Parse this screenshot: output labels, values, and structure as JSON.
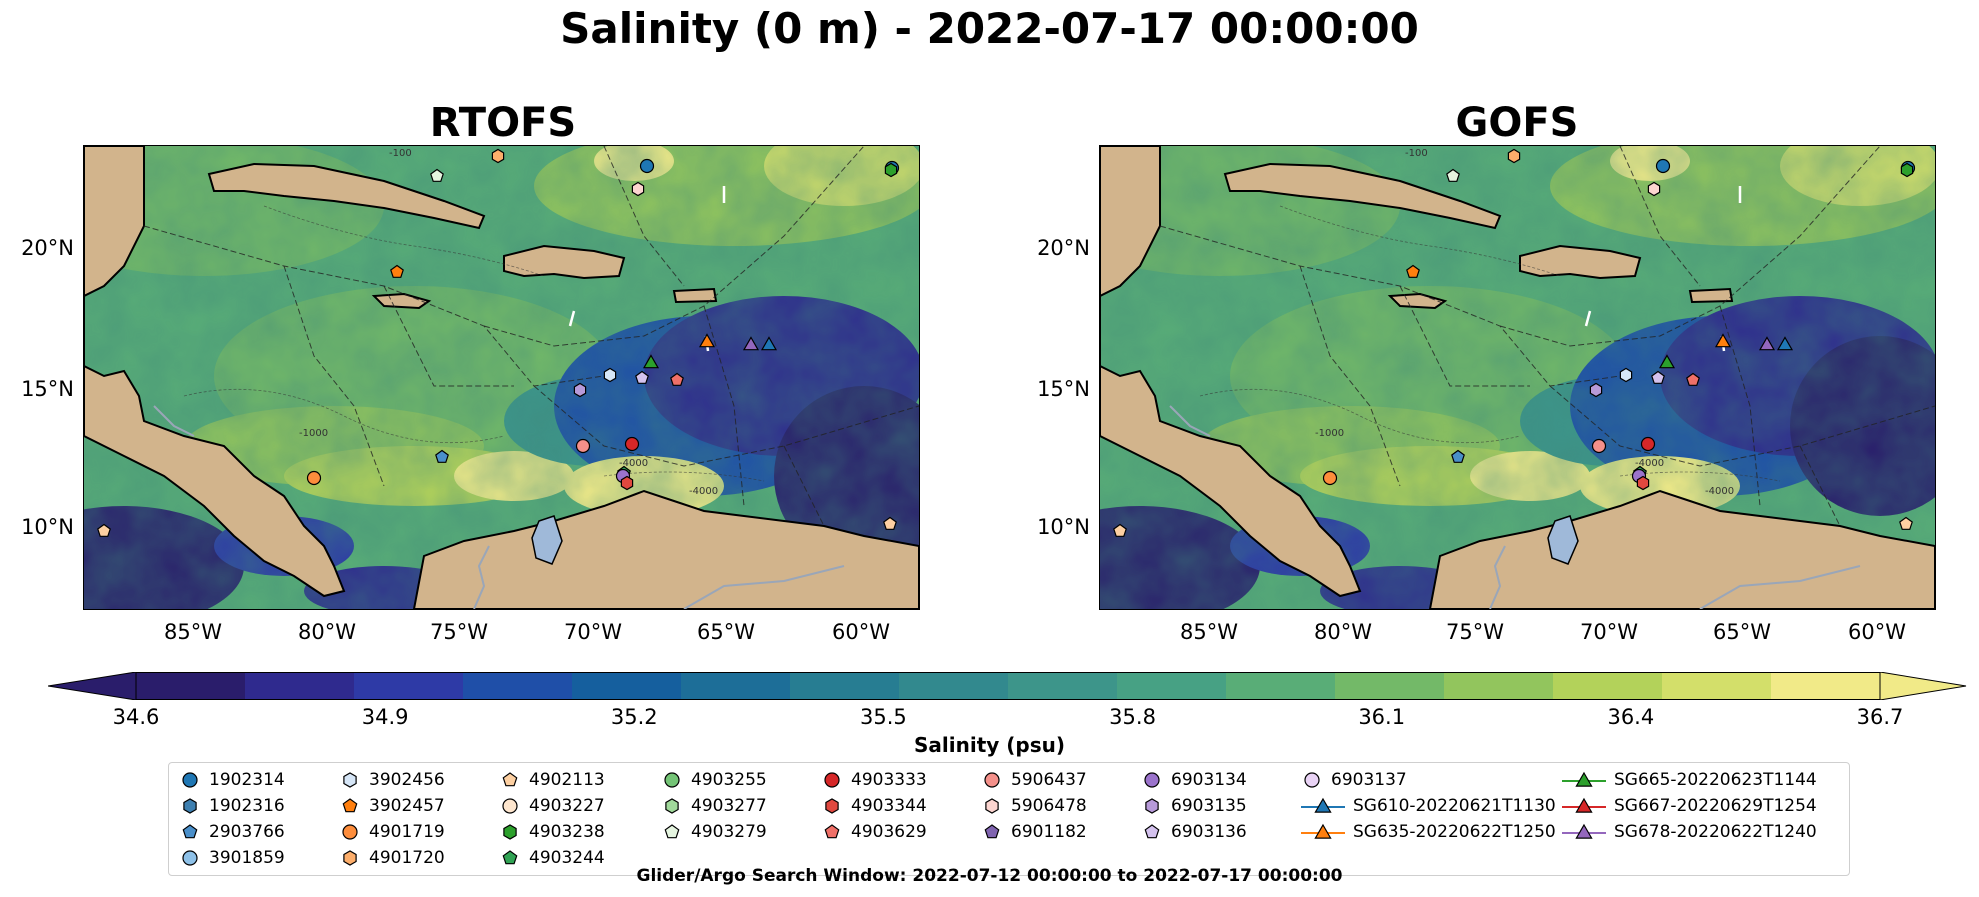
{
  "title": "Salinity (0 m) - 2022-07-17 00:00:00",
  "panels": [
    {
      "title": "RTOFS"
    },
    {
      "title": "GOFS"
    }
  ],
  "lat_labels": [
    "20°N",
    "15°N",
    "10°N"
  ],
  "lon_labels": [
    "85°W",
    "80°W",
    "75°W",
    "70°W",
    "65°W",
    "60°W"
  ],
  "colorbar": {
    "label": "Salinity (psu)",
    "ticks": [
      "34.6",
      "34.9",
      "35.2",
      "35.5",
      "35.8",
      "36.1",
      "36.4",
      "36.7"
    ],
    "vmin": 34.6,
    "vmax": 36.7,
    "colors": [
      "#2a1d6b",
      "#2f2a8e",
      "#2e3aa6",
      "#1f4fa8",
      "#155f9e",
      "#1d6e98",
      "#277d92",
      "#32898e",
      "#3d958a",
      "#47a184",
      "#59ad77",
      "#73b968",
      "#92c55d",
      "#b3d25a",
      "#d3df6a",
      "#f1ea88"
    ]
  },
  "bathymetry_labels": [
    "-100",
    "-1000",
    "-4000"
  ],
  "legend": [
    {
      "label": "1902314",
      "marker": "circle",
      "color": "#1f77b4"
    },
    {
      "label": "1902316",
      "marker": "hexagon",
      "color": "#3d7fb0"
    },
    {
      "label": "2903766",
      "marker": "pentagon",
      "color": "#4a8fca"
    },
    {
      "label": "3901859",
      "marker": "circle",
      "color": "#8ec1e8"
    },
    {
      "label": "3902456",
      "marker": "hexagon",
      "color": "#d6e6f7"
    },
    {
      "label": "3902457",
      "marker": "pentagon",
      "color": "#ff7f0e"
    },
    {
      "label": "4901719",
      "marker": "circle",
      "color": "#fd8d3c"
    },
    {
      "label": "4901720",
      "marker": "hexagon",
      "color": "#fdae6b"
    },
    {
      "label": "4902113",
      "marker": "pentagon",
      "color": "#fdd0a2"
    },
    {
      "label": "4903227",
      "marker": "circle",
      "color": "#fee6ce"
    },
    {
      "label": "4903238",
      "marker": "hexagon",
      "color": "#2ca02c"
    },
    {
      "label": "4903244",
      "marker": "pentagon",
      "color": "#31a354"
    },
    {
      "label": "4903255",
      "marker": "circle",
      "color": "#74c476"
    },
    {
      "label": "4903277",
      "marker": "hexagon",
      "color": "#a1d99b"
    },
    {
      "label": "4903279",
      "marker": "pentagon",
      "color": "#e5f5e0"
    },
    {
      "label": "4903333",
      "marker": "circle",
      "color": "#d62728"
    },
    {
      "label": "4903344",
      "marker": "hexagon",
      "color": "#e0483f"
    },
    {
      "label": "4903629",
      "marker": "pentagon",
      "color": "#f07068"
    },
    {
      "label": "5906437",
      "marker": "circle",
      "color": "#f4908a"
    },
    {
      "label": "5906478",
      "marker": "hexagon",
      "color": "#fcd5d0"
    },
    {
      "label": "6901182",
      "marker": "pentagon",
      "color": "#8064b0"
    },
    {
      "label": "6903134",
      "marker": "circle",
      "color": "#9b73cc"
    },
    {
      "label": "6903135",
      "marker": "hexagon",
      "color": "#b79ad9"
    },
    {
      "label": "6903136",
      "marker": "pentagon",
      "color": "#d4c2ee"
    },
    {
      "label": "6903137",
      "marker": "circle",
      "color": "#e9d3f5"
    },
    {
      "label": "SG610-20220621T1130",
      "marker": "triangle-line",
      "color": "#1f77b4"
    },
    {
      "label": "SG635-20220622T1250",
      "marker": "triangle-line",
      "color": "#ff7f0e"
    },
    {
      "label": "SG665-20220623T1144",
      "marker": "triangle-line",
      "color": "#2ca02c"
    },
    {
      "label": "SG667-20220629T1254",
      "marker": "triangle-line",
      "color": "#d62728"
    },
    {
      "label": "SG678-20220622T1240",
      "marker": "triangle-line",
      "color": "#9467bd"
    }
  ],
  "search_window": "Glider/Argo Search Window: 2022-07-12 00:00:00 to 2022-07-17 00:00:00"
}
